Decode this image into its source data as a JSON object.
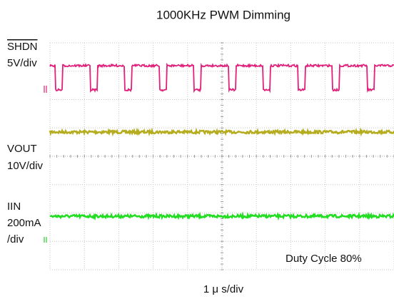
{
  "title": "1000KHz PWM Dimming",
  "channels": [
    {
      "name": "SHDN",
      "scale": "5V/div"
    },
    {
      "name": "VOUT",
      "scale": "10V/div"
    },
    {
      "name": "IIN",
      "scale_lines": [
        "200mA",
        "/div"
      ]
    }
  ],
  "annotation": "Duty Cycle 80%",
  "time_scale": "1 μ s/div"
}
